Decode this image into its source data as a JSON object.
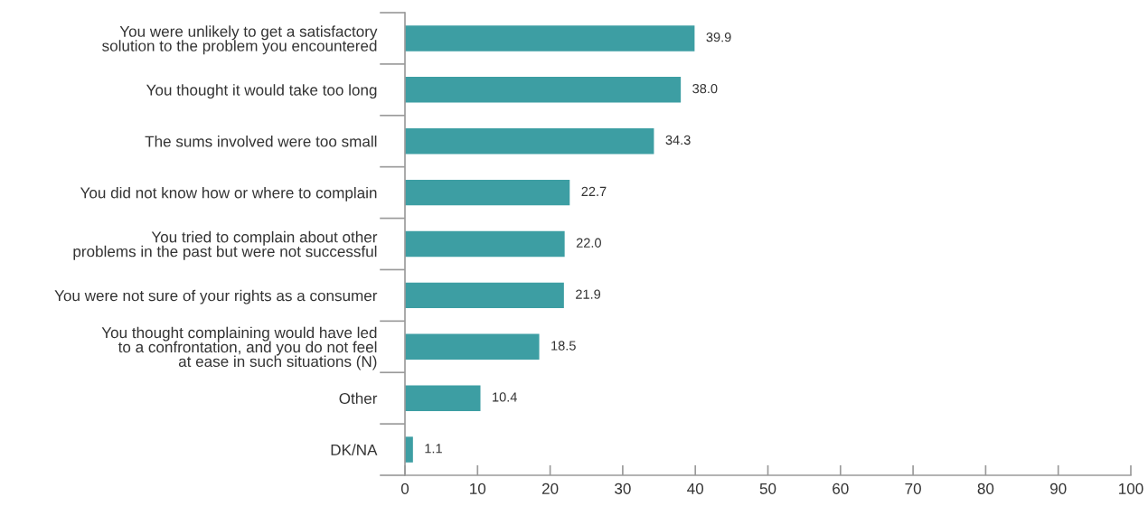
{
  "chart_data": {
    "type": "bar",
    "orientation": "horizontal",
    "categories": [
      "You were unlikely to get a satisfactory\nsolution to the problem you encountered",
      "You thought it would take too long",
      "The sums involved were too small",
      "You did not know how or where to complain",
      "You tried to complain about other\nproblems in the past but were not successful",
      "You were not sure of your rights as a consumer",
      "You thought complaining would have led\nto a confrontation, and you do not feel\nat ease in such situations (N)",
      "Other",
      "DK/NA"
    ],
    "values": [
      39.9,
      38.0,
      34.3,
      22.7,
      22.0,
      21.9,
      18.5,
      10.4,
      1.1
    ],
    "value_labels": [
      "39.9",
      "38.0",
      "34.3",
      "22.7",
      "22.0",
      "21.9",
      "18.5",
      "10.4",
      "1.1"
    ],
    "color": "#3d9ea3",
    "xlim": [
      0,
      100
    ],
    "xticks": [
      0,
      10,
      20,
      30,
      40,
      50,
      60,
      70,
      80,
      90,
      100
    ],
    "grid": false
  }
}
